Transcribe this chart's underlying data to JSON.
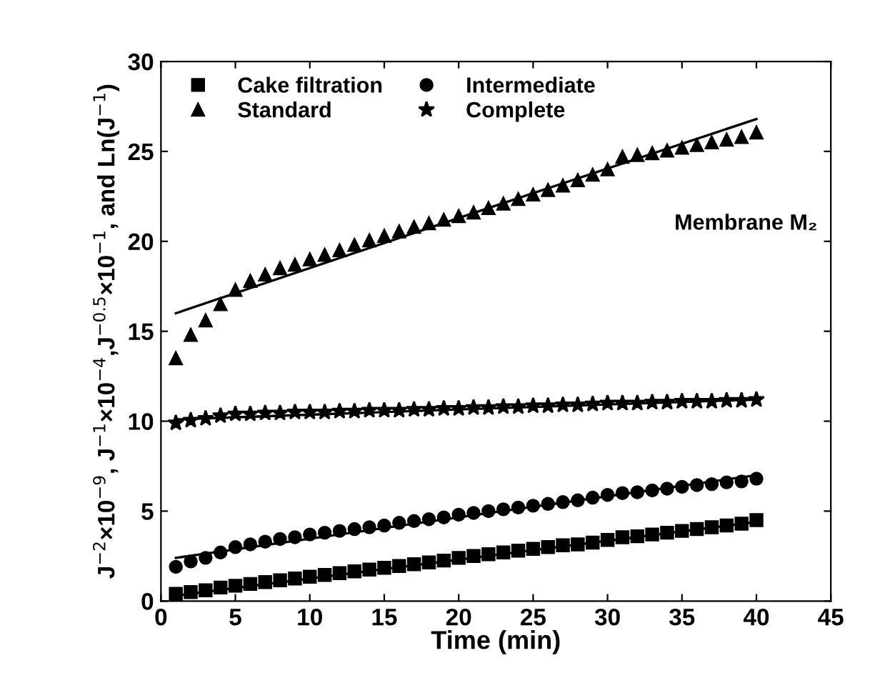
{
  "chart_data": {
    "type": "scatter",
    "xlabel": "Time (min)",
    "ylabel": "J$^{−2}$×10$^{−9}$, J$^{−1}$×10$^{−4}$,J$^{−0.5}$×10$^{−1}$, and Ln(J$^{−1}$)",
    "x": [
      1,
      2,
      3,
      4,
      5,
      6,
      7,
      8,
      9,
      10,
      11,
      12,
      13,
      14,
      15,
      16,
      17,
      18,
      19,
      20,
      21,
      22,
      23,
      24,
      25,
      26,
      27,
      28,
      29,
      30,
      31,
      32,
      33,
      34,
      35,
      36,
      37,
      38,
      39,
      40
    ],
    "xlim": [
      0,
      45
    ],
    "xticks": [
      0,
      5,
      10,
      15,
      20,
      25,
      30,
      35,
      40,
      45
    ],
    "ylim": [
      0,
      30
    ],
    "yticks": [
      0,
      5,
      10,
      15,
      20,
      25,
      30
    ],
    "grid": false,
    "legend": "top left",
    "annotations": [
      "Membrane M₂"
    ],
    "series": [
      {
        "name": "Cake filtration",
        "color": "#000000",
        "marker": "square",
        "values": [
          0.4,
          0.5,
          0.6,
          0.75,
          0.85,
          0.95,
          1.05,
          1.15,
          1.25,
          1.35,
          1.45,
          1.55,
          1.65,
          1.75,
          1.85,
          1.95,
          2.05,
          2.15,
          2.25,
          2.4,
          2.5,
          2.6,
          2.7,
          2.8,
          2.9,
          3.0,
          3.1,
          3.15,
          3.25,
          3.4,
          3.55,
          3.6,
          3.7,
          3.8,
          3.9,
          4.0,
          4.1,
          4.2,
          4.3,
          4.5
        ]
      },
      {
        "name": "Standard",
        "color": "#000000",
        "marker": "triangle",
        "values": [
          13.5,
          14.8,
          15.6,
          16.5,
          17.3,
          17.8,
          18.15,
          18.5,
          18.7,
          19.0,
          19.25,
          19.5,
          19.8,
          20.05,
          20.3,
          20.55,
          20.8,
          21.0,
          21.2,
          21.4,
          21.6,
          21.85,
          22.1,
          22.35,
          22.6,
          22.85,
          23.1,
          23.4,
          23.7,
          24.0,
          24.7,
          24.8,
          24.9,
          25.05,
          25.2,
          25.35,
          25.5,
          25.65,
          25.8,
          26.05
        ]
      },
      {
        "name": "Intermediate",
        "color": "#000000",
        "marker": "circle",
        "values": [
          1.9,
          2.2,
          2.4,
          2.7,
          3.0,
          3.15,
          3.3,
          3.45,
          3.55,
          3.7,
          3.8,
          3.9,
          4.0,
          4.1,
          4.2,
          4.35,
          4.45,
          4.55,
          4.65,
          4.8,
          4.9,
          5.0,
          5.1,
          5.2,
          5.3,
          5.4,
          5.5,
          5.6,
          5.75,
          5.9,
          6.0,
          6.05,
          6.15,
          6.25,
          6.35,
          6.45,
          6.5,
          6.6,
          6.65,
          6.8
        ]
      },
      {
        "name": "Complete",
        "color": "#000000",
        "marker": "star",
        "values": [
          9.9,
          10.05,
          10.15,
          10.3,
          10.4,
          10.4,
          10.45,
          10.45,
          10.5,
          10.5,
          10.5,
          10.55,
          10.55,
          10.6,
          10.6,
          10.6,
          10.65,
          10.65,
          10.7,
          10.7,
          10.75,
          10.75,
          10.8,
          10.8,
          10.85,
          10.85,
          10.9,
          10.9,
          10.95,
          11.0,
          11.0,
          11.0,
          11.05,
          11.05,
          11.1,
          11.1,
          11.1,
          11.15,
          11.15,
          11.2
        ]
      },
      {
        "type": "line",
        "color": "#000000",
        "x": [
          1,
          20,
          40
        ],
        "values": [
          0.3,
          2.3,
          4.4
        ]
      },
      {
        "type": "line",
        "color": "#000000",
        "x": [
          1,
          20,
          40
        ],
        "values": [
          16.0,
          21.3,
          26.8
        ]
      },
      {
        "type": "line",
        "color": "#000000",
        "x": [
          1,
          20,
          40
        ],
        "values": [
          2.4,
          4.65,
          7.0
        ]
      },
      {
        "type": "line",
        "color": "#000000",
        "x": [
          1,
          20,
          40
        ],
        "values": [
          10.1,
          10.65,
          11.2
        ]
      }
    ]
  }
}
